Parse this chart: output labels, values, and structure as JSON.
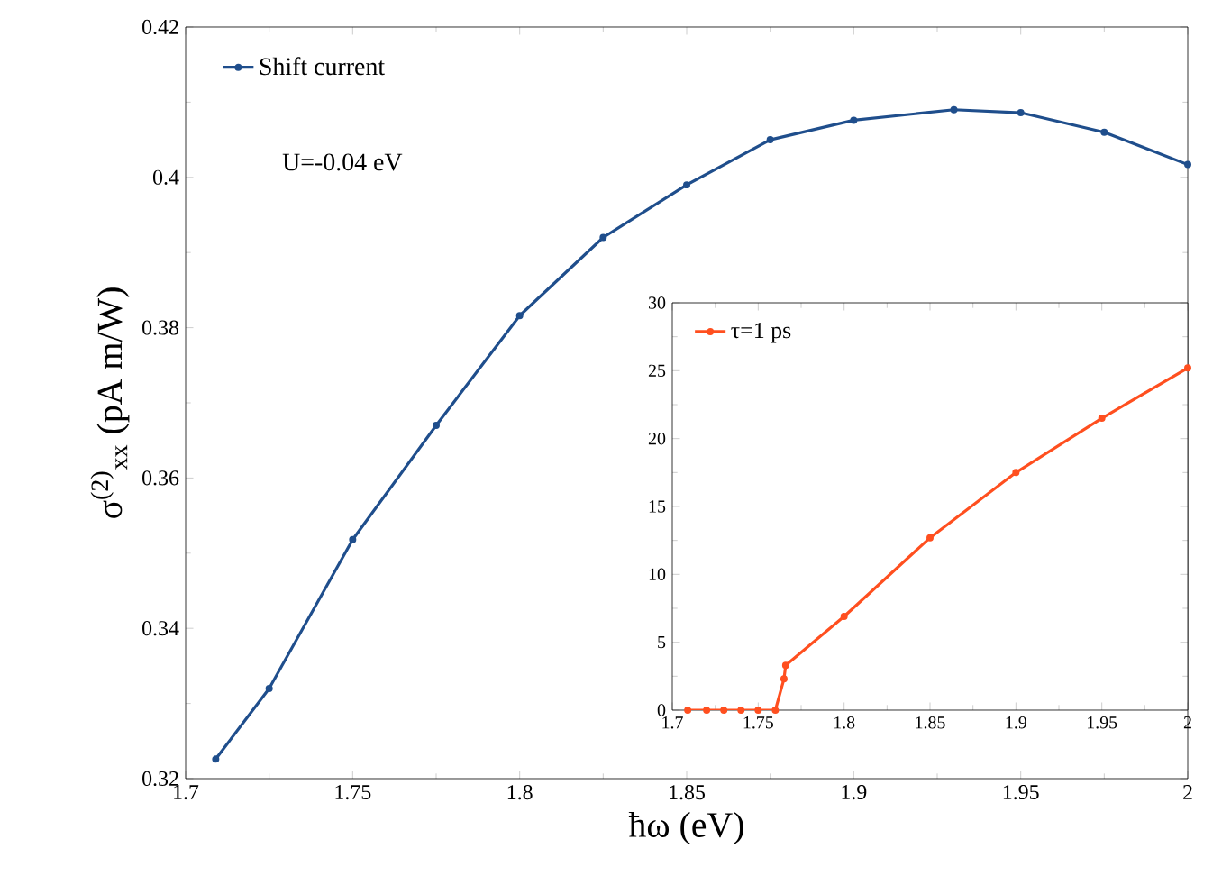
{
  "chart_data": [
    {
      "type": "line",
      "xlabel": "ħω (eV)",
      "ylabel": "σ$^{(2)}$$_{xx}$ (pA m/W)",
      "annotations": [
        "U=-0.04 eV"
      ],
      "xlim": [
        1.7,
        2
      ],
      "ylim": [
        0.32,
        0.42
      ],
      "xticks": [
        1.7,
        1.75,
        1.8,
        1.85,
        1.9,
        1.95,
        2
      ],
      "yticks": [
        0.32,
        0.34,
        0.36,
        0.38,
        0.4,
        0.42
      ],
      "legend": "top left",
      "marker": "circle",
      "line_style": "solid",
      "series": [
        {
          "name": "Shift current",
          "color": "#1f4e8c",
          "x": [
            1.709,
            1.725,
            1.75,
            1.775,
            1.8,
            1.825,
            1.85,
            1.875,
            1.9,
            1.93,
            1.95,
            1.975,
            2.0
          ],
          "values": [
            0.3226,
            0.332,
            0.3518,
            0.367,
            0.3816,
            0.392,
            0.399,
            0.405,
            0.4076,
            0.409,
            0.4086,
            0.406,
            0.4017
          ]
        }
      ]
    },
    {
      "type": "line",
      "xlim": [
        1.7,
        2
      ],
      "ylim": [
        0,
        30
      ],
      "xticks": [
        1.7,
        1.75,
        1.8,
        1.85,
        1.9,
        1.95,
        2
      ],
      "yticks": [
        0,
        5,
        10,
        15,
        20,
        25,
        30
      ],
      "legend": "top left",
      "marker": "circle",
      "line_style": "solid",
      "series": [
        {
          "name": "τ=1 ps",
          "color": "#ff4f1f",
          "x": [
            1.709,
            1.72,
            1.73,
            1.74,
            1.75,
            1.76,
            1.765,
            1.766,
            1.8,
            1.85,
            1.9,
            1.95,
            2.0
          ],
          "values": [
            0,
            0,
            0,
            0,
            0,
            0,
            2.3,
            3.3,
            6.9,
            12.7,
            17.5,
            21.5,
            25.2
          ]
        }
      ]
    }
  ]
}
